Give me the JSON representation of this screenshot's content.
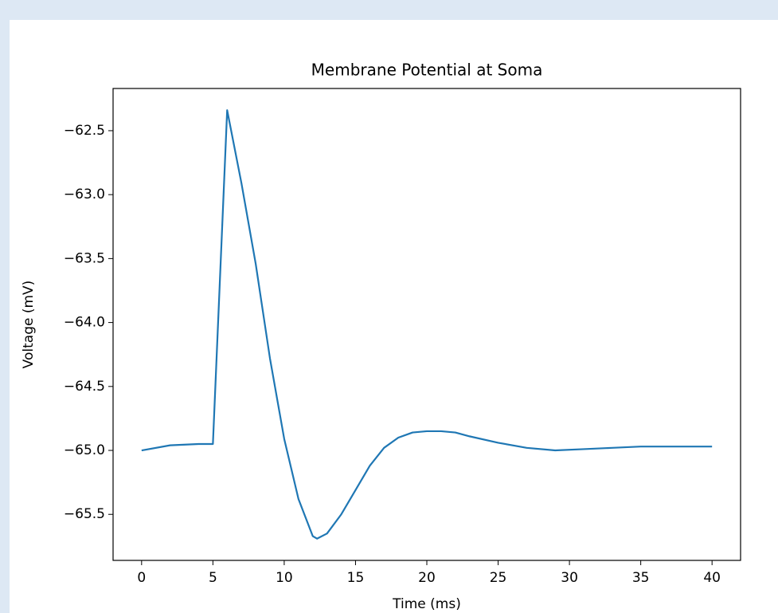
{
  "chart_data": {
    "type": "line",
    "title": "Membrane Potential at Soma",
    "x_label": "Time (ms)",
    "y_label": "Voltage (mV)",
    "x": [
      0,
      2,
      4,
      5,
      6,
      7,
      8,
      9,
      10,
      11,
      12,
      12.3,
      13,
      14,
      15,
      16,
      17,
      18,
      19,
      20,
      21,
      22,
      23,
      25,
      27,
      29,
      31,
      33,
      35,
      37,
      40
    ],
    "series": [
      {
        "name": "Soma",
        "color": "#1f77b4",
        "values": [
          -65.0,
          -64.96,
          -64.95,
          -64.95,
          -62.34,
          -62.91,
          -63.54,
          -64.28,
          -64.91,
          -65.38,
          -65.67,
          -65.69,
          -65.65,
          -65.5,
          -65.31,
          -65.12,
          -64.98,
          -64.9,
          -64.86,
          -64.85,
          -64.85,
          -64.86,
          -64.89,
          -64.94,
          -64.98,
          -65.0,
          -64.99,
          -64.98,
          -64.97,
          -64.97,
          -64.97
        ]
      }
    ],
    "xlim": [
      -2,
      42
    ],
    "xticks": [
      0,
      5,
      10,
      15,
      20,
      25,
      30,
      35,
      40
    ],
    "ylim": [
      -65.86,
      -62.17
    ],
    "yticks": [
      {
        "value": -65.5,
        "label": "−65.5"
      },
      {
        "value": -65.0,
        "label": "−65.0"
      },
      {
        "value": -64.5,
        "label": "−64.5"
      },
      {
        "value": -64.0,
        "label": "−64.0"
      },
      {
        "value": -63.5,
        "label": "−63.5"
      },
      {
        "value": -63.0,
        "label": "−63.0"
      },
      {
        "value": -62.5,
        "label": "−62.5"
      }
    ],
    "grid": false
  }
}
